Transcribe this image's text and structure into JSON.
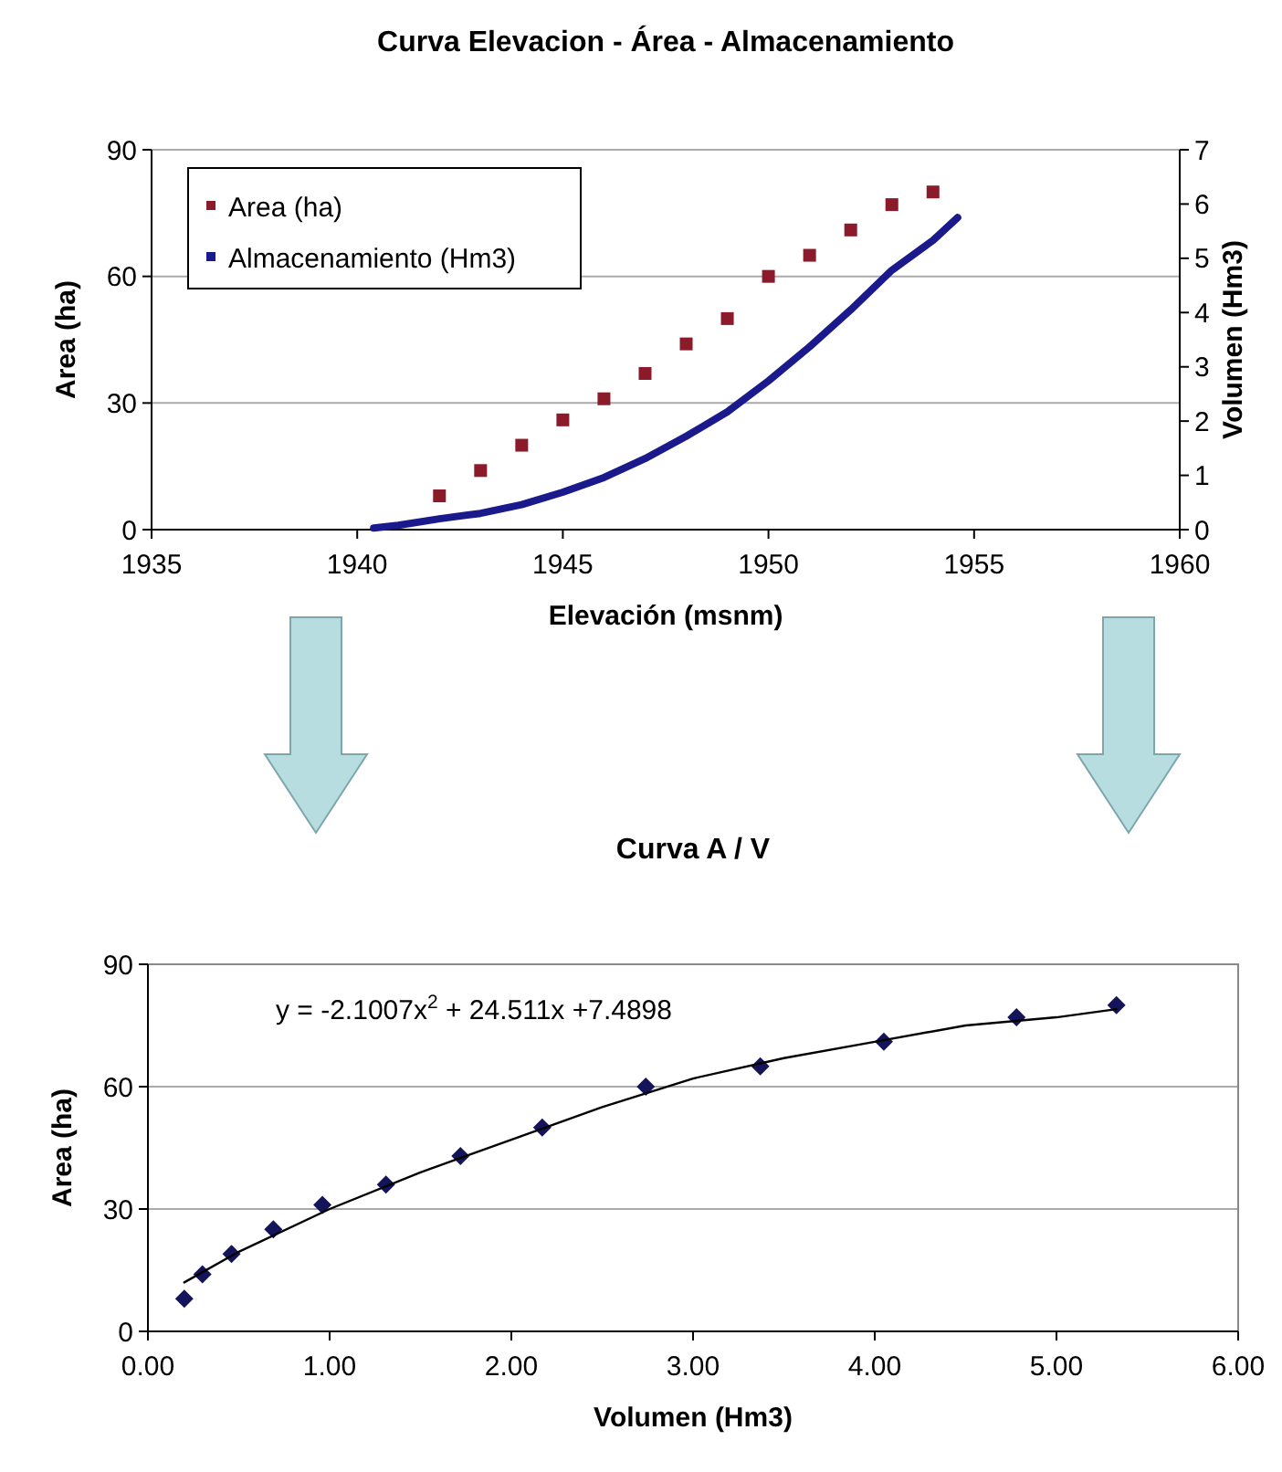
{
  "chart_data": [
    {
      "type": "scatter",
      "title": "Curva Elevacion - Área - Almacenamiento",
      "xlabel": "Elevación (msnm)",
      "ylabel": "Area (ha)",
      "y2label": "Volumen (Hm3)",
      "xlim": [
        1935,
        1960
      ],
      "xticks": [
        1935,
        1940,
        1945,
        1950,
        1955,
        1960
      ],
      "ylim": [
        0,
        90
      ],
      "yticks": [
        0,
        30,
        60,
        90
      ],
      "y2lim": [
        0,
        7
      ],
      "y2ticks": [
        0,
        1,
        2,
        3,
        4,
        5,
        6,
        7
      ],
      "grid": "y",
      "legend": "top left",
      "series": [
        {
          "name": "Area (ha)",
          "marker": "square",
          "color": "#8b1a2a",
          "x": [
            1942,
            1943,
            1944,
            1945,
            1946,
            1947,
            1948,
            1949,
            1950,
            1951,
            1952,
            1953,
            1954
          ],
          "values": [
            8,
            14,
            20,
            26,
            31,
            37,
            44,
            50,
            60,
            65,
            71,
            77,
            80
          ]
        },
        {
          "name": "Almacenamiento (Hm3)",
          "type": "line",
          "axis": "y2",
          "marker": "none",
          "color": "#1a1a8c",
          "x": [
            1940.4,
            1941,
            1942,
            1943,
            1944,
            1945,
            1946,
            1947,
            1948,
            1949,
            1950,
            1951,
            1952,
            1953,
            1954,
            1954.6
          ],
          "values": [
            0.03,
            0.08,
            0.2,
            0.3,
            0.46,
            0.69,
            0.96,
            1.31,
            1.72,
            2.17,
            2.74,
            3.37,
            4.05,
            4.78,
            5.33,
            5.75
          ]
        }
      ]
    },
    {
      "type": "scatter",
      "title": "Curva A / V",
      "xlabel": "Volumen (Hm3)",
      "ylabel": "Area (ha)",
      "xlim": [
        0,
        6
      ],
      "xticks": [
        {
          "value": 0,
          "label": "0.00"
        },
        {
          "value": 1,
          "label": "1.00"
        },
        {
          "value": 2,
          "label": "2.00"
        },
        {
          "value": 3,
          "label": "3.00"
        },
        {
          "value": 4,
          "label": "4.00"
        },
        {
          "value": 5,
          "label": "5.00"
        },
        {
          "value": 6,
          "label": "6.00"
        }
      ],
      "ylim": [
        0,
        90
      ],
      "yticks": [
        0,
        30,
        60,
        90
      ],
      "grid": "y",
      "annotations": [
        "y = -2.1007x$^{2}$ + 24.511x +7.4898"
      ],
      "series": [
        {
          "marker": "diamond",
          "color": "#14145a",
          "x": [
            0.2,
            0.3,
            0.46,
            0.69,
            0.96,
            1.31,
            1.72,
            2.17,
            2.74,
            3.37,
            4.05,
            4.78,
            5.33
          ],
          "values": [
            8,
            14,
            19,
            25,
            31,
            36,
            43,
            50,
            60,
            65,
            71,
            77,
            80
          ]
        },
        {
          "type": "line",
          "marker": "none",
          "color": "#000000",
          "x": [
            0.2,
            0.5,
            1,
            1.5,
            2,
            2.5,
            3,
            3.5,
            4,
            4.5,
            5,
            5.33
          ],
          "values": [
            12,
            19.5,
            30,
            39,
            47,
            55,
            62,
            67,
            71,
            75,
            77,
            79
          ]
        }
      ]
    }
  ]
}
